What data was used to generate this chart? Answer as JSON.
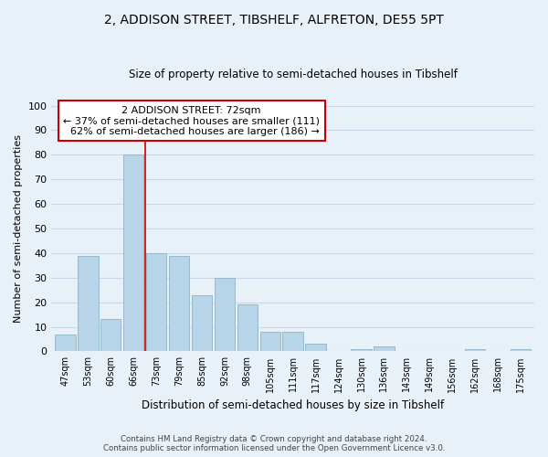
{
  "title": "2, ADDISON STREET, TIBSHELF, ALFRETON, DE55 5PT",
  "subtitle": "Size of property relative to semi-detached houses in Tibshelf",
  "xlabel": "Distribution of semi-detached houses by size in Tibshelf",
  "ylabel": "Number of semi-detached properties",
  "bar_labels": [
    "47sqm",
    "53sqm",
    "60sqm",
    "66sqm",
    "73sqm",
    "79sqm",
    "85sqm",
    "92sqm",
    "98sqm",
    "105sqm",
    "111sqm",
    "117sqm",
    "124sqm",
    "130sqm",
    "136sqm",
    "143sqm",
    "149sqm",
    "156sqm",
    "162sqm",
    "168sqm",
    "175sqm"
  ],
  "bar_values": [
    7,
    39,
    13,
    80,
    40,
    39,
    23,
    30,
    19,
    8,
    8,
    3,
    0,
    1,
    2,
    0,
    0,
    0,
    1,
    0,
    1
  ],
  "bar_color": "#b8d4e8",
  "bar_edge_color": "#8ab4cc",
  "property_size": "72sqm",
  "pct_smaller": 37,
  "count_smaller": 111,
  "pct_larger": 62,
  "count_larger": 186,
  "ylim": [
    0,
    100
  ],
  "yticks": [
    0,
    10,
    20,
    30,
    40,
    50,
    60,
    70,
    80,
    90,
    100
  ],
  "annotation_box_color": "#ffffff",
  "annotation_box_edge": "#cc0000",
  "vline_color": "#cc0000",
  "grid_color": "#c8d8e8",
  "background_color": "#e8f0f8",
  "footer_line1": "Contains HM Land Registry data © Crown copyright and database right 2024.",
  "footer_line2": "Contains public sector information licensed under the Open Government Licence v3.0."
}
